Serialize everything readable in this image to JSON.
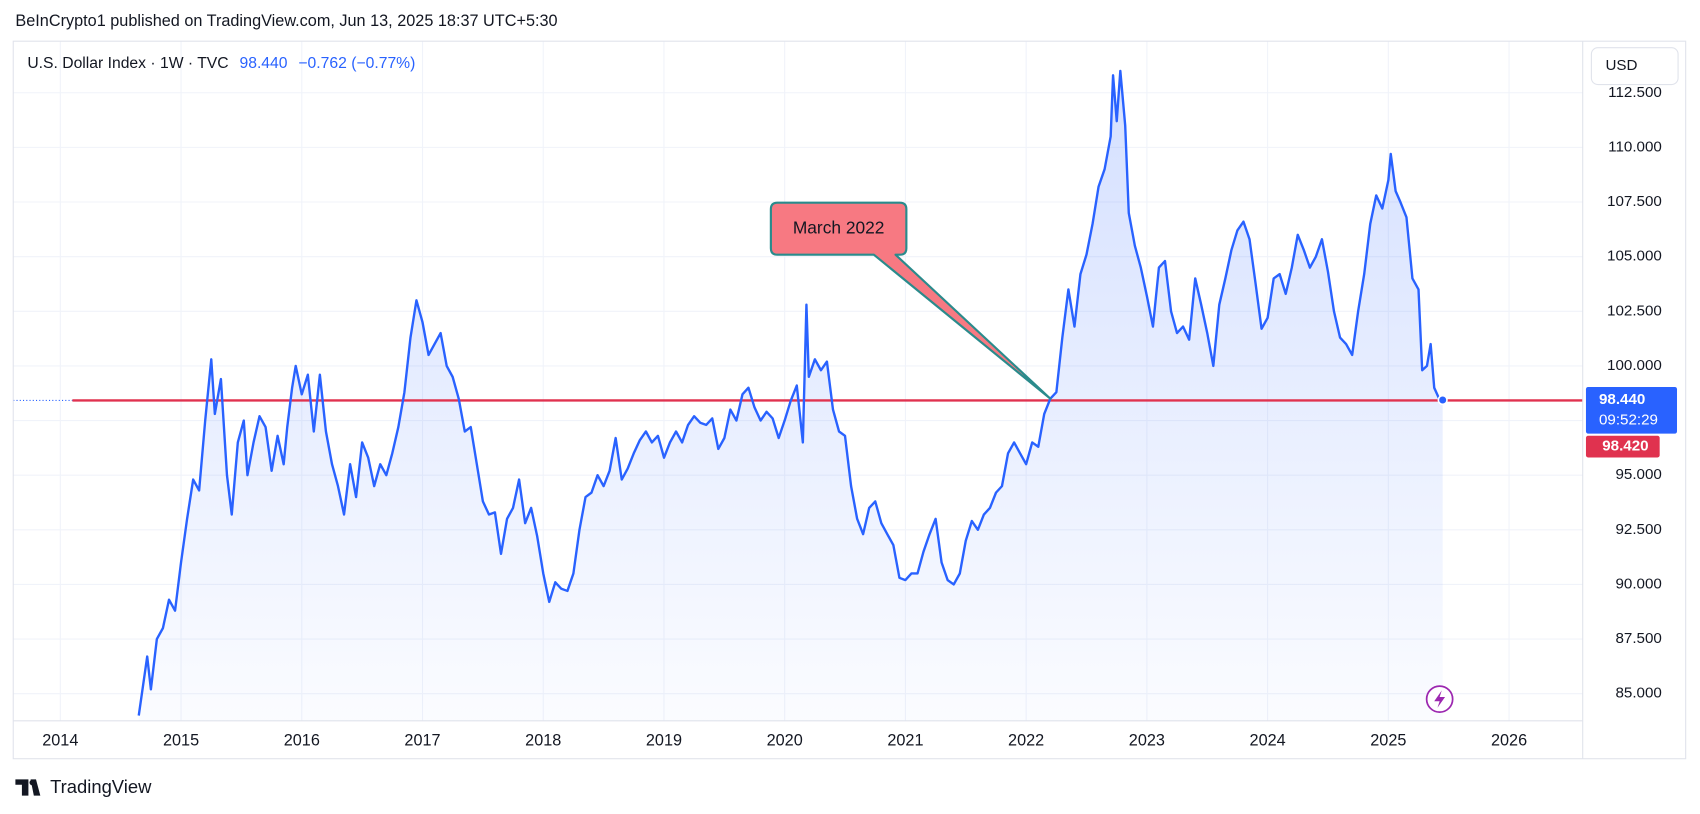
{
  "header": {
    "text": "BeInCrypto1 published on TradingView.com, Jun 13, 2025 18:37 UTC+5:30"
  },
  "chart_data": {
    "type": "line",
    "symbol": "U.S. Dollar Index · 1W · TVC",
    "change": "−0.762 (−0.77%)",
    "currency": "USD",
    "color": "#2962ff",
    "x": [
      2014.65,
      2014.72,
      2014.75,
      2014.8,
      2014.85,
      2014.9,
      2014.95,
      2015.0,
      2015.05,
      2015.1,
      2015.15,
      2015.2,
      2015.25,
      2015.28,
      2015.33,
      2015.38,
      2015.42,
      2015.47,
      2015.52,
      2015.55,
      2015.6,
      2015.65,
      2015.7,
      2015.75,
      2015.8,
      2015.85,
      2015.88,
      2015.92,
      2015.95,
      2016.0,
      2016.05,
      2016.1,
      2016.15,
      2016.2,
      2016.25,
      2016.3,
      2016.35,
      2016.4,
      2016.45,
      2016.5,
      2016.55,
      2016.6,
      2016.65,
      2016.7,
      2016.75,
      2016.8,
      2016.85,
      2016.9,
      2016.95,
      2017.0,
      2017.05,
      2017.1,
      2017.15,
      2017.2,
      2017.25,
      2017.3,
      2017.35,
      2017.4,
      2017.45,
      2017.5,
      2017.55,
      2017.6,
      2017.65,
      2017.7,
      2017.75,
      2017.8,
      2017.85,
      2017.9,
      2017.95,
      2018.0,
      2018.05,
      2018.1,
      2018.15,
      2018.2,
      2018.25,
      2018.3,
      2018.35,
      2018.4,
      2018.45,
      2018.5,
      2018.55,
      2018.6,
      2018.65,
      2018.7,
      2018.75,
      2018.8,
      2018.85,
      2018.9,
      2018.95,
      2019.0,
      2019.05,
      2019.1,
      2019.15,
      2019.2,
      2019.25,
      2019.3,
      2019.35,
      2019.4,
      2019.45,
      2019.5,
      2019.55,
      2019.6,
      2019.65,
      2019.7,
      2019.75,
      2019.8,
      2019.85,
      2019.9,
      2019.95,
      2020.0,
      2020.05,
      2020.1,
      2020.15,
      2020.18,
      2020.2,
      2020.25,
      2020.3,
      2020.35,
      2020.4,
      2020.45,
      2020.5,
      2020.55,
      2020.6,
      2020.65,
      2020.7,
      2020.75,
      2020.8,
      2020.85,
      2020.9,
      2020.95,
      2021.0,
      2021.05,
      2021.1,
      2021.15,
      2021.2,
      2021.25,
      2021.3,
      2021.35,
      2021.4,
      2021.45,
      2021.5,
      2021.55,
      2021.6,
      2021.65,
      2021.7,
      2021.75,
      2021.8,
      2021.85,
      2021.9,
      2021.95,
      2022.0,
      2022.05,
      2022.1,
      2022.15,
      2022.2,
      2022.25,
      2022.3,
      2022.35,
      2022.4,
      2022.45,
      2022.5,
      2022.55,
      2022.6,
      2022.65,
      2022.7,
      2022.72,
      2022.75,
      2022.78,
      2022.82,
      2022.85,
      2022.9,
      2022.95,
      2023.0,
      2023.05,
      2023.1,
      2023.15,
      2023.2,
      2023.25,
      2023.3,
      2023.35,
      2023.4,
      2023.45,
      2023.5,
      2023.55,
      2023.6,
      2023.65,
      2023.7,
      2023.75,
      2023.8,
      2023.85,
      2023.9,
      2023.95,
      2024.0,
      2024.05,
      2024.1,
      2024.15,
      2024.2,
      2024.25,
      2024.3,
      2024.35,
      2024.4,
      2024.45,
      2024.5,
      2024.55,
      2024.6,
      2024.65,
      2024.7,
      2024.75,
      2024.8,
      2024.85,
      2024.9,
      2024.95,
      2025.0,
      2025.02,
      2025.06,
      2025.1,
      2025.15,
      2025.2,
      2025.25,
      2025.28,
      2025.32,
      2025.35,
      2025.38,
      2025.42,
      2025.45
    ],
    "values": [
      84.0,
      86.7,
      85.2,
      87.5,
      88,
      89.3,
      88.8,
      91,
      93,
      94.8,
      94.3,
      97.5,
      100.3,
      97.8,
      99.4,
      95,
      93.2,
      96.5,
      97.5,
      95,
      96.5,
      97.7,
      97.2,
      95.2,
      96.8,
      95.5,
      97.2,
      99,
      100,
      98.7,
      99.6,
      97,
      99.6,
      97,
      95.5,
      94.5,
      93.2,
      95.5,
      94,
      96.5,
      95.8,
      94.5,
      95.5,
      95,
      96,
      97.2,
      98.8,
      101.3,
      103,
      102,
      100.5,
      101,
      101.5,
      100,
      99.5,
      98.5,
      97,
      97.2,
      95.5,
      93.8,
      93.2,
      93.3,
      91.4,
      93,
      93.5,
      94.8,
      92.8,
      93.5,
      92.2,
      90.5,
      89.2,
      90.1,
      89.8,
      89.7,
      90.5,
      92.5,
      94,
      94.2,
      95,
      94.5,
      95.2,
      96.7,
      94.8,
      95.3,
      96,
      96.6,
      97,
      96.5,
      96.8,
      95.8,
      96.5,
      97,
      96.5,
      97.3,
      97.7,
      97.4,
      97.3,
      97.6,
      96.2,
      96.7,
      98,
      97.5,
      98.7,
      99,
      98.1,
      97.5,
      97.9,
      97.6,
      96.7,
      97.5,
      98.4,
      99.1,
      96.5,
      102.8,
      99.5,
      100.3,
      99.8,
      100.2,
      98,
      97,
      96.8,
      94.5,
      93,
      92.3,
      93.5,
      93.8,
      92.8,
      92.3,
      91.8,
      90.3,
      90.2,
      90.5,
      90.5,
      91.5,
      92.3,
      93,
      91,
      90.2,
      90,
      90.5,
      92,
      92.9,
      92.5,
      93.2,
      93.5,
      94.2,
      94.5,
      96,
      96.5,
      96,
      95.5,
      96.5,
      96.3,
      97.8,
      98.5,
      98.8,
      101.3,
      103.5,
      101.8,
      104.2,
      105.1,
      106.5,
      108.2,
      109,
      110.5,
      113.3,
      111.2,
      113.5,
      111,
      107,
      105.5,
      104.5,
      103.2,
      101.8,
      104.5,
      104.8,
      102.5,
      101.5,
      101.8,
      101.2,
      104,
      102.8,
      101.5,
      100,
      102.8,
      104,
      105.3,
      106.2,
      106.6,
      105.8,
      103.8,
      101.7,
      102.2,
      104,
      104.2,
      103.3,
      104.5,
      106,
      105.3,
      104.5,
      105,
      105.8,
      104.3,
      102.5,
      101.3,
      101,
      100.5,
      102.5,
      104.2,
      106.5,
      107.8,
      107.2,
      108.5,
      109.7,
      108,
      107.5,
      106.8,
      104,
      103.5,
      99.8,
      100,
      101,
      99,
      98.5,
      98.44
    ],
    "xlim": [
      2013.61,
      2026.61
    ],
    "xticks": [
      2014,
      2015,
      2016,
      2017,
      2018,
      2019,
      2020,
      2021,
      2022,
      2023,
      2024,
      2025,
      2026
    ],
    "ylim": [
      83.76,
      114.86
    ],
    "yticks": [
      {
        "value": 85,
        "label": "85.000"
      },
      {
        "value": 87.5,
        "label": "87.500"
      },
      {
        "value": 90,
        "label": "90.000"
      },
      {
        "value": 92.5,
        "label": "92.500"
      },
      {
        "value": 95,
        "label": "95.000"
      },
      {
        "value": 97.5,
        "label": "97.500"
      },
      {
        "value": 100,
        "label": "100.000"
      },
      {
        "value": 102.5,
        "label": "102.500"
      },
      {
        "value": 105,
        "label": "105.000"
      },
      {
        "value": 107.5,
        "label": "107.500"
      },
      {
        "value": 110,
        "label": "110.000"
      },
      {
        "value": 112.5,
        "label": "112.500"
      }
    ],
    "grid": true,
    "last_price": {
      "value": 98.44,
      "label": "98.440"
    },
    "countdown": "09:52:29",
    "hline": {
      "value": 98.42,
      "label": "98.420",
      "color": "#e0324f",
      "x_start": 2014.1
    },
    "annotation": {
      "text": "March 2022",
      "x": 2022.2,
      "y": 98.5
    }
  },
  "footer": {
    "brand": "TradingView"
  }
}
